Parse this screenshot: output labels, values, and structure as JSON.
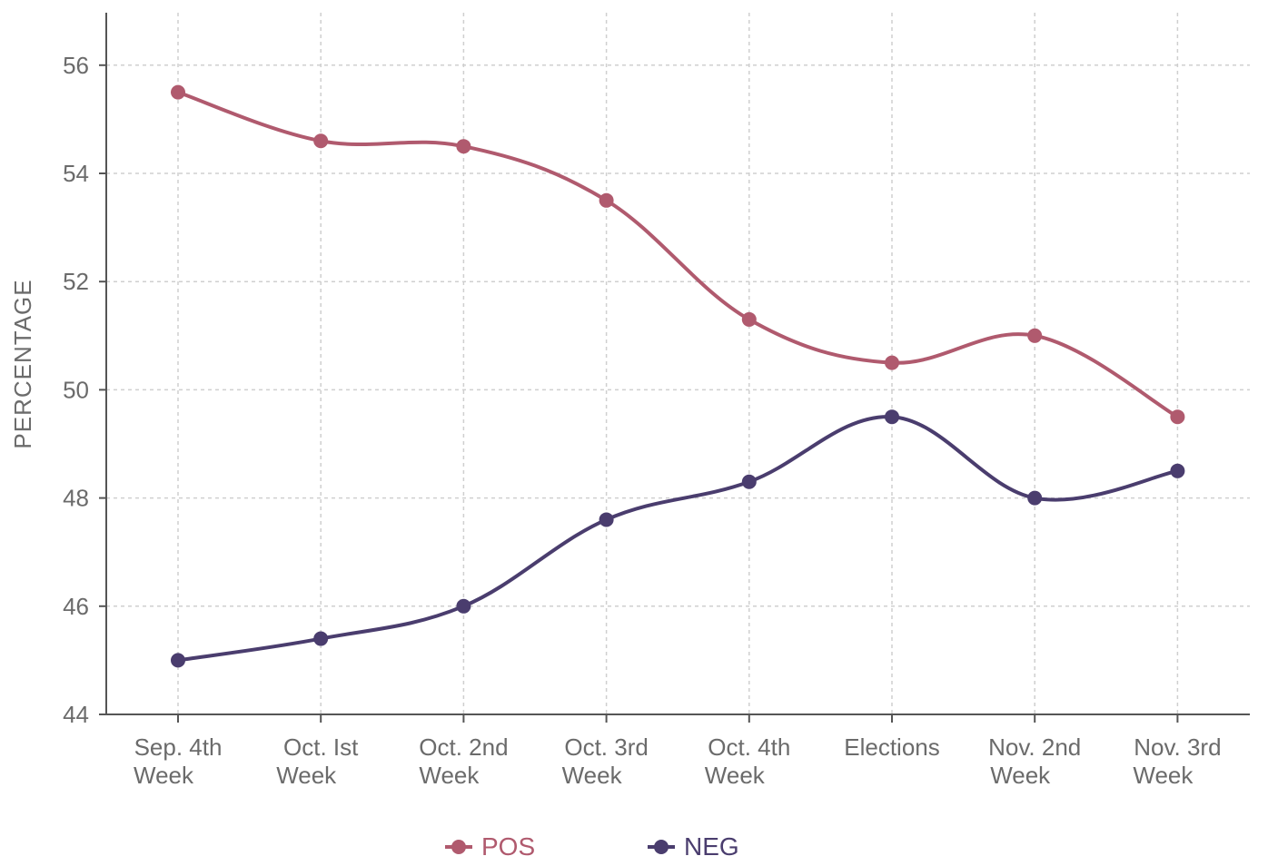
{
  "chart_data": {
    "type": "line",
    "title": "",
    "xlabel": "",
    "ylabel": "PERCENTAGE",
    "ylim": [
      44,
      57
    ],
    "yticks": [
      44,
      46,
      48,
      50,
      52,
      54,
      56
    ],
    "grid": true,
    "categories": [
      [
        "Sep. 4th",
        "Week"
      ],
      [
        "Oct. Ist",
        "Week"
      ],
      [
        "Oct. 2nd",
        "Week"
      ],
      [
        "Oct. 3rd",
        "Week"
      ],
      [
        "Oct. 4th",
        "Week"
      ],
      [
        "Elections",
        ""
      ],
      [
        "Nov. 2nd",
        "Week"
      ],
      [
        "Nov. 3rd",
        "Week"
      ]
    ],
    "series": [
      {
        "name": "POS",
        "color": "#b05a6e",
        "values": [
          55.5,
          54.6,
          54.5,
          53.5,
          51.3,
          50.5,
          51.0,
          49.5
        ]
      },
      {
        "name": "NEG",
        "color": "#4a3d6e",
        "values": [
          45.0,
          45.4,
          46.0,
          47.6,
          48.3,
          49.5,
          48.0,
          48.5
        ]
      }
    ],
    "legend_position": "bottom-center"
  }
}
